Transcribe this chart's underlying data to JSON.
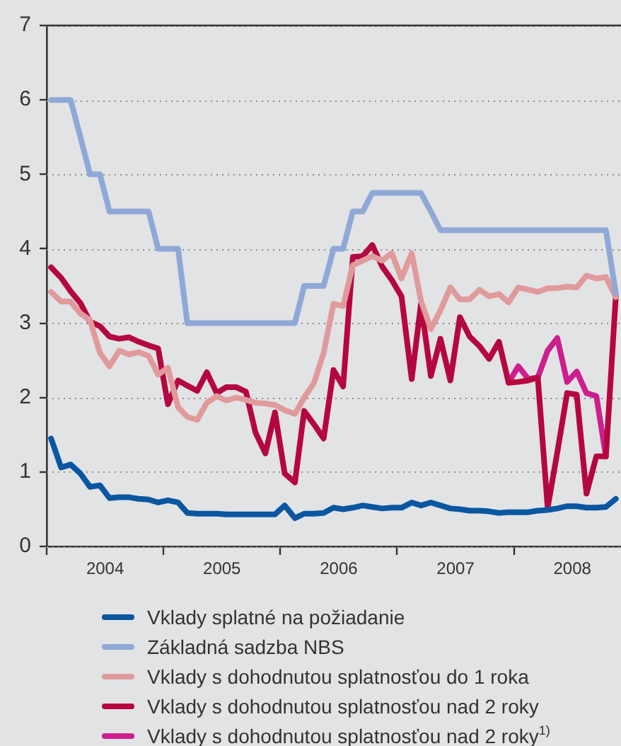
{
  "chart_data": {
    "type": "line",
    "x": [
      "2004-01-15",
      "2004-02-15",
      "2004-03-15",
      "2004-04-15",
      "2004-05-15",
      "2004-06-15",
      "2004-07-15",
      "2004-08-15",
      "2004-09-15",
      "2004-10-15",
      "2004-11-15",
      "2004-12-15",
      "2005-01-15",
      "2005-02-15",
      "2005-03-15",
      "2005-04-15",
      "2005-05-15",
      "2005-06-15",
      "2005-07-15",
      "2005-08-15",
      "2005-09-15",
      "2005-10-15",
      "2005-11-15",
      "2005-12-15",
      "2006-01-15",
      "2006-02-15",
      "2006-03-15",
      "2006-04-15",
      "2006-05-15",
      "2006-06-15",
      "2006-07-15",
      "2006-08-15",
      "2006-09-15",
      "2006-10-15",
      "2006-11-15",
      "2006-12-15",
      "2007-01-15",
      "2007-02-15",
      "2007-03-15",
      "2007-04-15",
      "2007-05-15",
      "2007-06-15",
      "2007-07-15",
      "2007-08-15",
      "2007-09-15",
      "2007-10-15",
      "2007-11-15",
      "2007-12-15",
      "2008-01-15",
      "2008-02-15",
      "2008-03-15",
      "2008-04-15",
      "2008-05-15",
      "2008-06-15",
      "2008-07-15",
      "2008-08-15",
      "2008-09-15",
      "2008-10-15",
      "2008-11-15"
    ],
    "series": [
      {
        "name": "Vklady splatné na požiadanie",
        "color": "#0a56a0",
        "values": [
          1.45,
          1.06,
          1.1,
          0.98,
          0.8,
          0.82,
          0.65,
          0.66,
          0.66,
          0.64,
          0.63,
          0.59,
          0.62,
          0.59,
          0.45,
          0.44,
          0.44,
          0.44,
          0.43,
          0.43,
          0.43,
          0.43,
          0.43,
          0.43,
          0.55,
          0.38,
          0.44,
          0.44,
          0.45,
          0.52,
          0.5,
          0.52,
          0.55,
          0.53,
          0.51,
          0.52,
          0.52,
          0.59,
          0.55,
          0.59,
          0.55,
          0.51,
          0.5,
          0.48,
          0.48,
          0.47,
          0.45,
          0.46,
          0.46,
          0.46,
          0.48,
          0.49,
          0.51,
          0.54,
          0.54,
          0.52,
          0.52,
          0.53,
          0.64
        ]
      },
      {
        "name": "Základná sadzba NBS",
        "color": "#8fa8d6",
        "values": [
          6,
          6,
          6,
          5.5,
          5,
          5,
          4.5,
          4.5,
          4.5,
          4.5,
          4.5,
          4,
          4,
          4,
          3,
          3,
          3,
          3,
          3,
          3,
          3,
          3,
          3,
          3,
          3,
          3,
          3.5,
          3.5,
          3.5,
          4,
          4,
          4.5,
          4.5,
          4.75,
          4.75,
          4.75,
          4.75,
          4.75,
          4.75,
          4.5,
          4.25,
          4.25,
          4.25,
          4.25,
          4.25,
          4.25,
          4.25,
          4.25,
          4.25,
          4.25,
          4.25,
          4.25,
          4.25,
          4.25,
          4.25,
          4.25,
          4.25,
          4.25,
          3.4
        ]
      },
      {
        "name": "Vklady s dohodnutou splatnosťou do 1 roka",
        "color": "#e09a9c",
        "values": [
          3.42,
          3.29,
          3.29,
          3.13,
          3.04,
          2.6,
          2.42,
          2.63,
          2.58,
          2.61,
          2.56,
          2.31,
          2.4,
          1.87,
          1.74,
          1.7,
          1.93,
          2.02,
          1.96,
          2,
          1.97,
          1.93,
          1.92,
          1.9,
          1.83,
          1.78,
          2,
          2.2,
          2.6,
          3.26,
          3.23,
          3.78,
          3.84,
          3.9,
          3.84,
          3.94,
          3.6,
          3.94,
          3.3,
          2.92,
          3.17,
          3.48,
          3.32,
          3.32,
          3.45,
          3.36,
          3.39,
          3.28,
          3.48,
          3.45,
          3.42,
          3.47,
          3.47,
          3.49,
          3.48,
          3.64,
          3.6,
          3.62,
          3.35
        ]
      },
      {
        "name": "Vklady s dohodnutou splatnosťou nad 2 roky",
        "color": "#b5073f",
        "values": [
          3.75,
          3.61,
          3.43,
          3.27,
          3.02,
          2.96,
          2.82,
          2.79,
          2.81,
          2.75,
          2.7,
          2.66,
          1.91,
          2.23,
          2.16,
          2.09,
          2.34,
          2.06,
          2.14,
          2.14,
          2.08,
          1.53,
          1.25,
          1.8,
          0.98,
          0.86,
          1.82,
          1.64,
          1.45,
          2.37,
          2.15,
          3.89,
          3.9,
          4.05,
          3.76,
          3.58,
          3.36,
          2.25,
          3.26,
          2.29,
          2.79,
          2.23,
          3.08,
          2.82,
          2.69,
          2.52,
          2.75,
          2.2,
          2.21,
          2.23,
          2.27,
          0.52,
          1.26,
          2.06,
          2.04,
          0.71,
          1.21,
          1.21,
          3.36
        ]
      },
      {
        "name": "Vklady s dohodnutou splatnosťou nad 2 roky$^{1)}$",
        "color": "#cc1f8e",
        "values": [
          null,
          null,
          null,
          null,
          null,
          null,
          null,
          null,
          null,
          null,
          null,
          null,
          null,
          null,
          null,
          null,
          null,
          null,
          null,
          null,
          null,
          null,
          null,
          null,
          null,
          null,
          null,
          null,
          null,
          null,
          null,
          null,
          null,
          null,
          null,
          null,
          null,
          null,
          null,
          null,
          null,
          null,
          null,
          null,
          null,
          null,
          null,
          2.2,
          2.42,
          2.25,
          2.27,
          2.63,
          2.8,
          2.21,
          2.35,
          2.06,
          2.02,
          1.21,
          null
        ]
      }
    ],
    "xlim": [
      "2004-01-01",
      "2008-12-01"
    ],
    "xticks": [
      {
        "value": "2004-01-01",
        "label": null
      },
      {
        "value": "2004-07-01",
        "label": "2004"
      },
      {
        "value": "2005-01-01",
        "label": null
      },
      {
        "value": "2005-07-01",
        "label": "2005"
      },
      {
        "value": "2006-01-01",
        "label": null
      },
      {
        "value": "2006-07-01",
        "label": "2006"
      },
      {
        "value": "2007-01-01",
        "label": null
      },
      {
        "value": "2007-07-01",
        "label": "2007"
      },
      {
        "value": "2008-01-01",
        "label": null
      },
      {
        "value": "2008-07-01",
        "label": "2008"
      }
    ],
    "ylim": [
      0,
      7
    ],
    "yticks": [
      0,
      1,
      2,
      3,
      4,
      5,
      6,
      7
    ],
    "grid": "y",
    "legend": "bottom",
    "marker": "none",
    "line_style": "solid"
  }
}
